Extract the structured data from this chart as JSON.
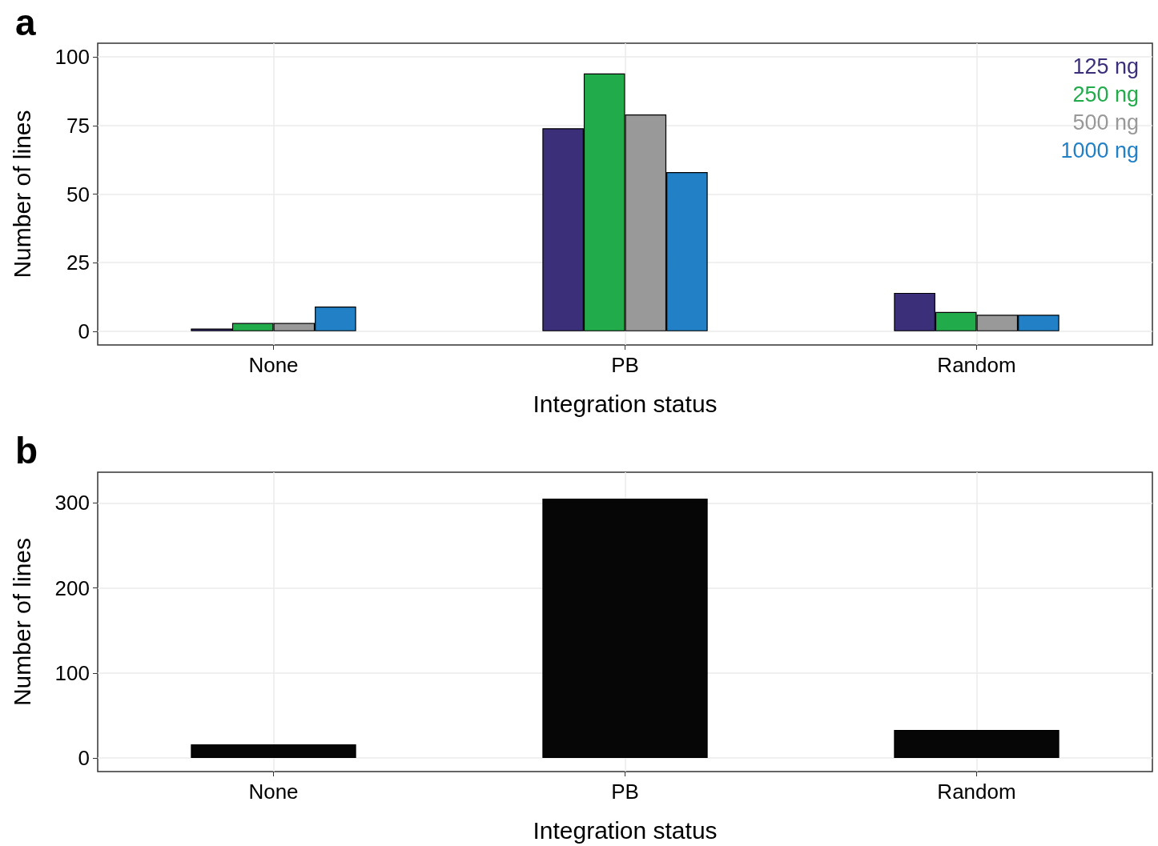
{
  "chart_data": [
    {
      "type": "bar",
      "title": "a",
      "xlabel": "Integration status",
      "ylabel": "Number of lines",
      "categories": [
        "None",
        "PB",
        "Random"
      ],
      "series": [
        {
          "name": "125 ng",
          "color": "#3b2f7a",
          "values": [
            1,
            74,
            14
          ]
        },
        {
          "name": "250 ng",
          "color": "#22ab4b",
          "values": [
            3,
            94,
            7
          ]
        },
        {
          "name": "500 ng",
          "color": "#999999",
          "values": [
            3,
            79,
            6
          ]
        },
        {
          "name": "1000 ng",
          "color": "#2180c6",
          "values": [
            9,
            58,
            6
          ]
        }
      ],
      "ylim": [
        -5,
        105
      ],
      "yticks": [
        0,
        25,
        50,
        75,
        100
      ],
      "grid": true,
      "legend": "top right"
    },
    {
      "type": "bar",
      "title": "b",
      "xlabel": "Integration status",
      "ylabel": "Number of lines",
      "categories": [
        "None",
        "PB",
        "Random"
      ],
      "series": [
        {
          "color": "#060606",
          "values": [
            16,
            305,
            33
          ]
        }
      ],
      "ylim": [
        -16,
        336
      ],
      "yticks": [
        0,
        100,
        200,
        300
      ],
      "grid": true
    }
  ]
}
